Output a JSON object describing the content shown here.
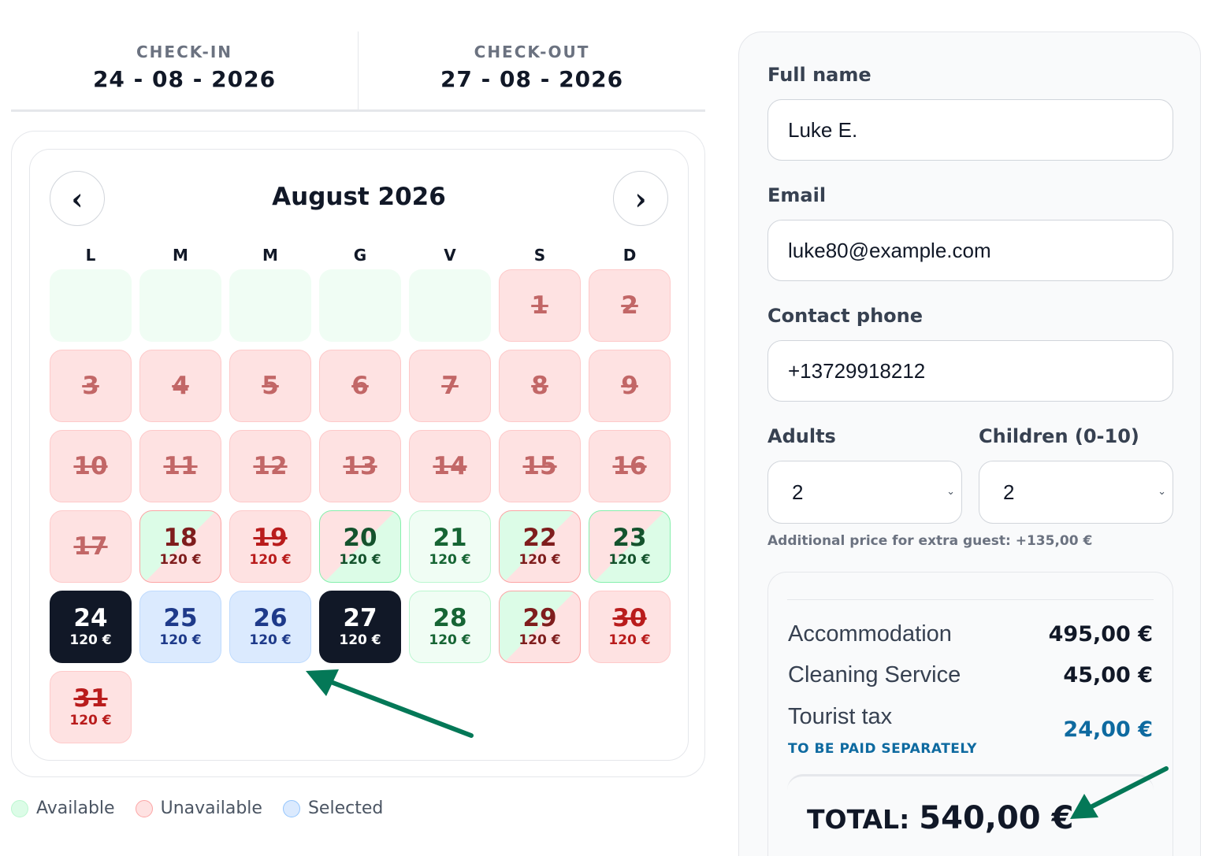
{
  "dates": {
    "checkin_label": "CHECK-IN",
    "checkin_value": "24 - 08 - 2026",
    "checkout_label": "CHECK-OUT",
    "checkout_value": "27 - 08 - 2026"
  },
  "calendar": {
    "month_title": "August 2026",
    "prev_icon": "‹",
    "next_icon": "›",
    "weekdays": [
      "L",
      "M",
      "M",
      "G",
      "V",
      "S",
      "D"
    ],
    "leading_empty": 5,
    "days": [
      {
        "day": "1",
        "price": "",
        "status": "unavailable"
      },
      {
        "day": "2",
        "price": "",
        "status": "unavailable"
      },
      {
        "day": "3",
        "price": "",
        "status": "unavailable"
      },
      {
        "day": "4",
        "price": "",
        "status": "unavailable"
      },
      {
        "day": "5",
        "price": "",
        "status": "unavailable"
      },
      {
        "day": "6",
        "price": "",
        "status": "unavailable"
      },
      {
        "day": "7",
        "price": "",
        "status": "unavailable"
      },
      {
        "day": "8",
        "price": "",
        "status": "unavailable"
      },
      {
        "day": "9",
        "price": "",
        "status": "unavailable"
      },
      {
        "day": "10",
        "price": "",
        "status": "unavailable"
      },
      {
        "day": "11",
        "price": "",
        "status": "unavailable"
      },
      {
        "day": "12",
        "price": "",
        "status": "unavailable"
      },
      {
        "day": "13",
        "price": "",
        "status": "unavailable"
      },
      {
        "day": "14",
        "price": "",
        "status": "unavailable"
      },
      {
        "day": "15",
        "price": "",
        "status": "unavailable"
      },
      {
        "day": "16",
        "price": "",
        "status": "unavailable"
      },
      {
        "day": "17",
        "price": "",
        "status": "unavailable"
      },
      {
        "day": "18",
        "price": "120 €",
        "status": "checkin-only"
      },
      {
        "day": "19",
        "price": "120 €",
        "status": "unavailable-priced"
      },
      {
        "day": "20",
        "price": "120 €",
        "status": "checkout-only"
      },
      {
        "day": "21",
        "price": "120 €",
        "status": "available"
      },
      {
        "day": "22",
        "price": "120 €",
        "status": "checkin-only"
      },
      {
        "day": "23",
        "price": "120 €",
        "status": "checkout-only"
      },
      {
        "day": "24",
        "price": "120 €",
        "status": "selected-edge"
      },
      {
        "day": "25",
        "price": "120 €",
        "status": "selected"
      },
      {
        "day": "26",
        "price": "120 €",
        "status": "selected"
      },
      {
        "day": "27",
        "price": "120 €",
        "status": "selected-edge"
      },
      {
        "day": "28",
        "price": "120 €",
        "status": "available"
      },
      {
        "day": "29",
        "price": "120 €",
        "status": "checkin-only"
      },
      {
        "day": "30",
        "price": "120 €",
        "status": "unavailable-priced"
      },
      {
        "day": "31",
        "price": "120 €",
        "status": "unavailable-priced"
      }
    ]
  },
  "legend": {
    "available": "Available",
    "unavailable": "Unavailable",
    "selected": "Selected"
  },
  "form": {
    "full_name_label": "Full name",
    "full_name_value": "Luke E.",
    "email_label": "Email",
    "email_value": "luke80@example.com",
    "phone_label": "Contact phone",
    "phone_value": "+13729918212",
    "adults_label": "Adults",
    "adults_value": "2",
    "children_label": "Children (0-10)",
    "children_value": "2",
    "extra_note": "Additional price for extra guest: +135,00 €"
  },
  "summary": {
    "accommodation_label": "Accommodation",
    "accommodation_amount": "495,00 €",
    "cleaning_label": "Cleaning Service",
    "cleaning_amount": "45,00 €",
    "tax_label": "Tourist tax",
    "tax_note": "TO BE PAID SEPARATELY",
    "tax_amount": "24,00 €",
    "total_label": "TOTAL:",
    "total_amount": "540,00 €"
  },
  "colors": {
    "accent_dark": "#111827",
    "selected_blue": "#dbeafe",
    "available_green": "#f0fdf4",
    "unavailable_red": "#fee2e2",
    "tax_blue": "#0e6aa0",
    "arrow_green": "#047857"
  }
}
